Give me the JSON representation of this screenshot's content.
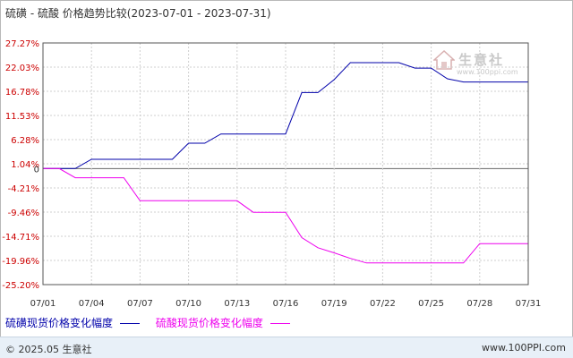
{
  "title": "硫磺 - 硫酸 价格趋势比较(2023-07-01 - 2023-07-31)",
  "watermark": {
    "name": "生意社",
    "url": "www.100ppi.com"
  },
  "chart_data": {
    "type": "line",
    "title": "硫磺 - 硫酸 价格趋势比较(2023-07-01 - 2023-07-31)",
    "ylim": [
      -25.2,
      27.27
    ],
    "yticks": [
      "27.27%",
      "22.03%",
      "16.78%",
      "11.53%",
      "6.28%",
      "1.04%",
      "0",
      "-4.21%",
      "-9.46%",
      "-14.71%",
      "-19.96%",
      "-25.20%"
    ],
    "ytick_values": [
      27.27,
      22.03,
      16.78,
      11.53,
      6.28,
      1.04,
      0,
      -4.21,
      -9.46,
      -14.71,
      -19.96,
      -25.2
    ],
    "x": [
      "07/01",
      "07/02",
      "07/03",
      "07/04",
      "07/05",
      "07/06",
      "07/07",
      "07/08",
      "07/09",
      "07/10",
      "07/11",
      "07/12",
      "07/13",
      "07/14",
      "07/15",
      "07/16",
      "07/17",
      "07/18",
      "07/19",
      "07/20",
      "07/21",
      "07/22",
      "07/23",
      "07/24",
      "07/25",
      "07/26",
      "07/27",
      "07/28",
      "07/29",
      "07/30",
      "07/31"
    ],
    "xticks": [
      "07/01",
      "07/04",
      "07/07",
      "07/10",
      "07/13",
      "07/16",
      "07/19",
      "07/22",
      "07/25",
      "07/28",
      "07/31"
    ],
    "grid": true,
    "series": [
      {
        "name": "硫磺现货价格变化幅度",
        "color": "#0000aa",
        "values": [
          0,
          0,
          0,
          2,
          2,
          2,
          2,
          2,
          2,
          5.5,
          5.5,
          7.5,
          7.5,
          7.5,
          7.5,
          7.5,
          16.5,
          16.5,
          19.3,
          23,
          23,
          23,
          23,
          21.8,
          21.8,
          19.5,
          18.8,
          18.8,
          18.8,
          18.8,
          18.8
        ]
      },
      {
        "name": "硫酸现货价格变化幅度",
        "color": "#ee00ee",
        "values": [
          0,
          0,
          -2,
          -2,
          -2,
          -2,
          -7,
          -7,
          -7,
          -7,
          -7,
          -7,
          -7,
          -9.5,
          -9.5,
          -9.5,
          -15,
          -17.2,
          -18.3,
          -19.5,
          -20.5,
          -20.5,
          -20.5,
          -20.5,
          -20.5,
          -20.5,
          -20.5,
          -16.3,
          -16.3,
          -16.3,
          -16.3
        ]
      }
    ]
  },
  "legend": [
    {
      "label": "硫磺现货价格变化幅度",
      "color": "#0000aa"
    },
    {
      "label": "硫酸现货价格变化幅度",
      "color": "#ee00ee"
    }
  ],
  "footer": {
    "copyright": "© 2025.05 生意社",
    "site": "www.100PPI.com"
  }
}
